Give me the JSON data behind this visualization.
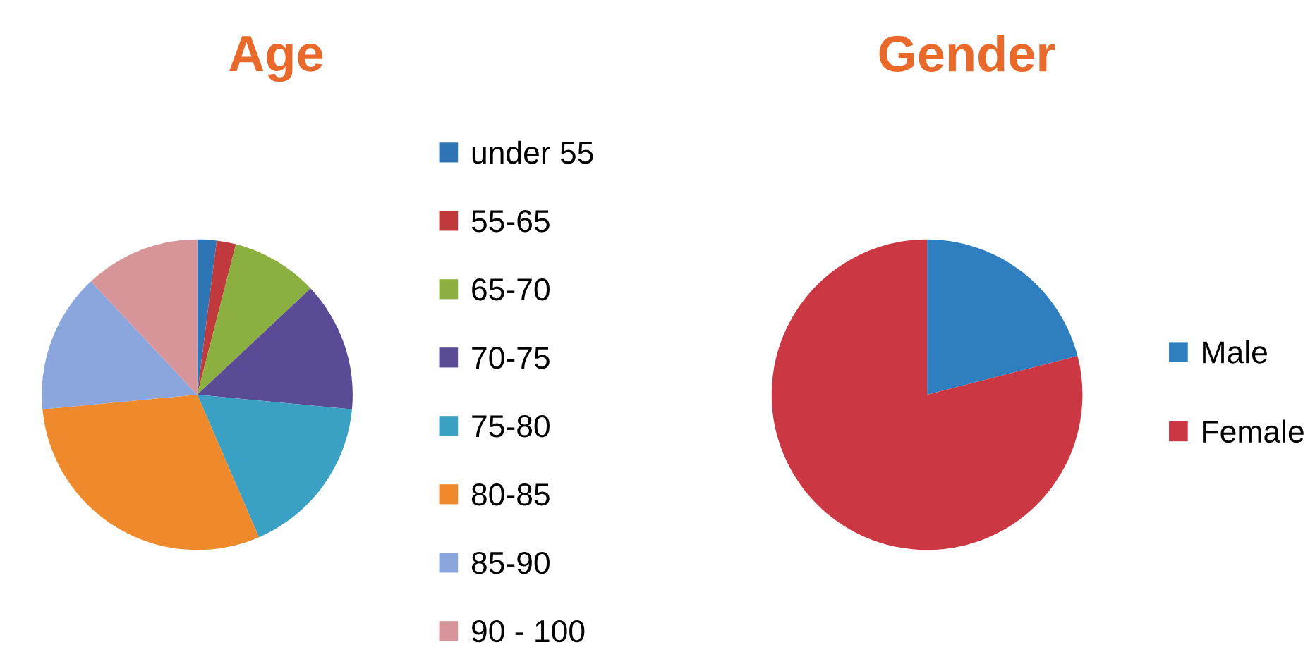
{
  "chart_data": [
    {
      "type": "pie",
      "title": "Age",
      "categories": [
        "under 55",
        "55-65",
        "65-70",
        "70-75",
        "75-80",
        "80-85",
        "85-90",
        "90 - 100"
      ],
      "values": [
        2,
        2,
        9,
        13.5,
        17,
        30,
        14.5,
        12
      ],
      "colors": [
        "#2e75b6",
        "#c0393d",
        "#8bb040",
        "#5b4a96",
        "#3aa0c4",
        "#ee8a2c",
        "#8aa6dc",
        "#d7959a"
      ],
      "legend": "right"
    },
    {
      "type": "pie",
      "title": "Gender",
      "categories": [
        "Male",
        "Female"
      ],
      "values": [
        21,
        79
      ],
      "colors": [
        "#2f7ec0",
        "#cc3744"
      ],
      "legend": "right"
    }
  ]
}
